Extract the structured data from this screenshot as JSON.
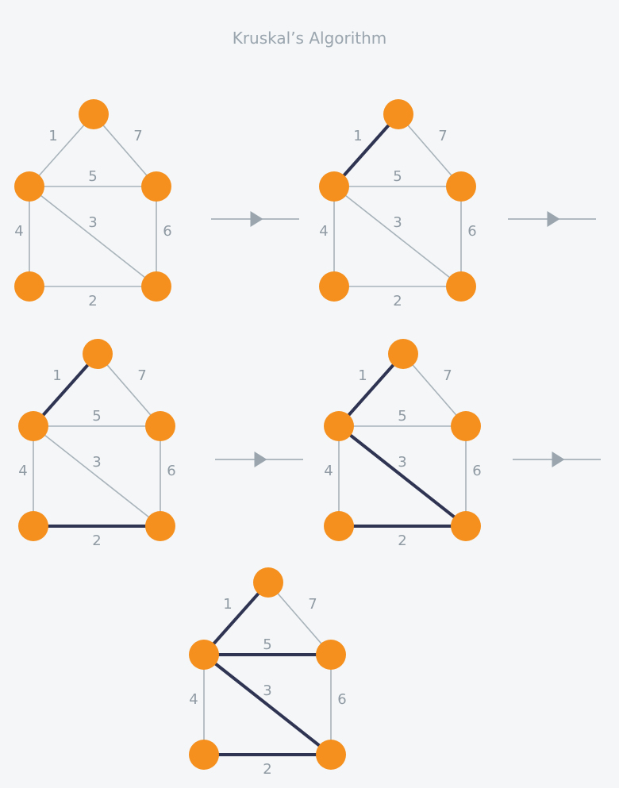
{
  "title": "Kruskal’s Algorithm",
  "colors": {
    "background": "#f4f6f8",
    "node": "#f5901e",
    "edge": "#a8b3ba",
    "selected_edge": "#2f3452",
    "label": "#8f9aa3",
    "arrow": "#9aa5ae"
  },
  "graph": {
    "nodes": [
      "top",
      "left",
      "right",
      "bottom-left",
      "bottom-right"
    ],
    "edges": [
      {
        "from": "top",
        "to": "left",
        "weight": "1"
      },
      {
        "from": "top",
        "to": "right",
        "weight": "7"
      },
      {
        "from": "left",
        "to": "right",
        "weight": "5"
      },
      {
        "from": "left",
        "to": "bottom-right",
        "weight": "3"
      },
      {
        "from": "left",
        "to": "bottom-left",
        "weight": "4"
      },
      {
        "from": "right",
        "to": "bottom-right",
        "weight": "6"
      },
      {
        "from": "bottom-left",
        "to": "bottom-right",
        "weight": "2"
      }
    ]
  },
  "steps": [
    {
      "selected_edges": []
    },
    {
      "selected_edges": [
        "1"
      ]
    },
    {
      "selected_edges": [
        "1",
        "2"
      ]
    },
    {
      "selected_edges": [
        "1",
        "2",
        "3"
      ]
    },
    {
      "selected_edges": [
        "1",
        "2",
        "3",
        "5"
      ]
    }
  ]
}
